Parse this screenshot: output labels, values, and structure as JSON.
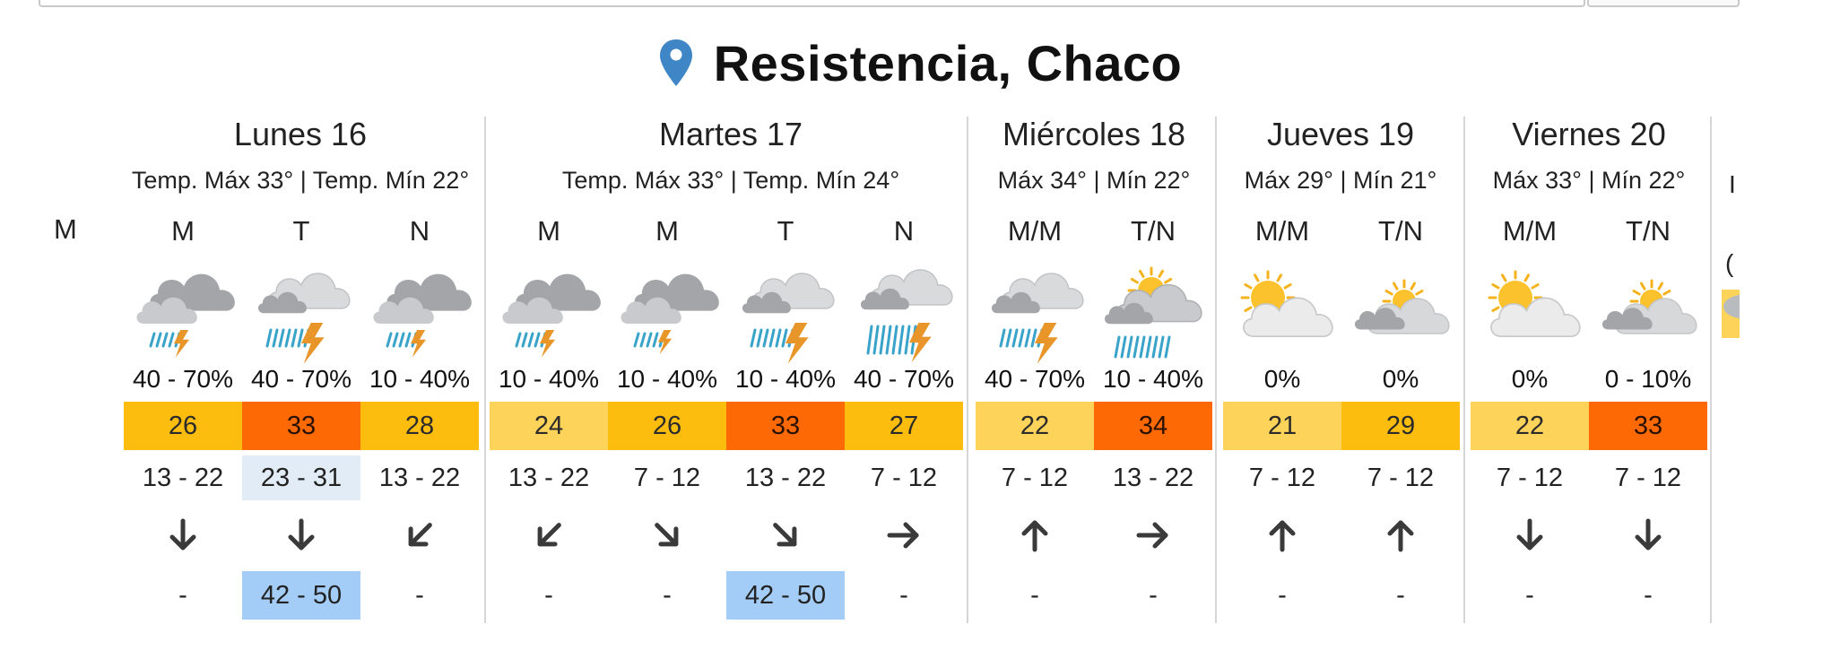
{
  "location": {
    "name": "Resistencia, Chaco",
    "pin_color": "#3f86c7"
  },
  "first_partial_period": "M",
  "temp_colors": {
    "light": "#fdd35a",
    "mid": "#fdbd0f",
    "hot": "#fd6904"
  },
  "days": [
    {
      "name": "Lunes 16",
      "temps": "Temp. Máx 33° | Temp. Mín 22°",
      "periods": [
        {
          "label": "M",
          "icon": "rain-thunder-cloudy-icon",
          "rain": "40 - 70%",
          "temp": "26",
          "temp_level": "mid",
          "wind": "13 - 22",
          "wind_hl": false,
          "dir": "down",
          "gust": "-",
          "gust_hl": false
        },
        {
          "label": "T",
          "icon": "heavy-rain-thunder-icon",
          "rain": "40 - 70%",
          "temp": "33",
          "temp_level": "hot",
          "wind": "23 - 31",
          "wind_hl": true,
          "dir": "down",
          "gust": "42 - 50",
          "gust_hl": true
        },
        {
          "label": "N",
          "icon": "rain-thunder-cloudy-icon",
          "rain": "10 - 40%",
          "temp": "28",
          "temp_level": "mid",
          "wind": "13 - 22",
          "wind_hl": false,
          "dir": "down-left",
          "gust": "-",
          "gust_hl": false
        }
      ]
    },
    {
      "name": "Martes 17",
      "temps": "Temp. Máx 33° | Temp. Mín 24°",
      "periods": [
        {
          "label": "M",
          "icon": "rain-thunder-cloudy-icon",
          "rain": "10 - 40%",
          "temp": "24",
          "temp_level": "light",
          "wind": "13 - 22",
          "wind_hl": false,
          "dir": "down-left",
          "gust": "-",
          "gust_hl": false
        },
        {
          "label": "M",
          "icon": "rain-cloudy-icon",
          "rain": "10 - 40%",
          "temp": "26",
          "temp_level": "mid",
          "wind": "7 - 12",
          "wind_hl": false,
          "dir": "down-right",
          "gust": "-",
          "gust_hl": false
        },
        {
          "label": "T",
          "icon": "heavy-rain-thunder-icon",
          "rain": "10 - 40%",
          "temp": "33",
          "temp_level": "hot",
          "wind": "13 - 22",
          "wind_hl": false,
          "dir": "down-right",
          "gust": "42 - 50",
          "gust_hl": true
        },
        {
          "label": "N",
          "icon": "storm-rain-thunder-icon",
          "rain": "40 - 70%",
          "temp": "27",
          "temp_level": "mid",
          "wind": "7 - 12",
          "wind_hl": false,
          "dir": "right",
          "gust": "-",
          "gust_hl": false
        }
      ]
    },
    {
      "name": "Miércoles 18",
      "temps": "Máx 34° | Mín 22°",
      "periods": [
        {
          "label": "M/M",
          "icon": "heavy-rain-thunder-icon",
          "rain": "40 - 70%",
          "temp": "22",
          "temp_level": "light",
          "wind": "7 - 12",
          "wind_hl": false,
          "dir": "up",
          "gust": "-",
          "gust_hl": false
        },
        {
          "label": "T/N",
          "icon": "sun-rain-cloud-icon",
          "rain": "10 - 40%",
          "temp": "34",
          "temp_level": "hot",
          "wind": "13 - 22",
          "wind_hl": false,
          "dir": "right",
          "gust": "-",
          "gust_hl": false
        }
      ]
    },
    {
      "name": "Jueves 19",
      "temps": "Máx 29° | Mín 21°",
      "periods": [
        {
          "label": "M/M",
          "icon": "partly-sunny-icon",
          "rain": "0%",
          "temp": "21",
          "temp_level": "light",
          "wind": "7 - 12",
          "wind_hl": false,
          "dir": "up",
          "gust": "-",
          "gust_hl": false
        },
        {
          "label": "T/N",
          "icon": "partly-cloudy-icon",
          "rain": "0%",
          "temp": "29",
          "temp_level": "mid",
          "wind": "7 - 12",
          "wind_hl": false,
          "dir": "up",
          "gust": "-",
          "gust_hl": false
        }
      ]
    },
    {
      "name": "Viernes 20",
      "temps": "Máx 33° | Mín 22°",
      "periods": [
        {
          "label": "M/M",
          "icon": "partly-sunny-icon",
          "rain": "0%",
          "temp": "22",
          "temp_level": "light",
          "wind": "7 - 12",
          "wind_hl": false,
          "dir": "down",
          "gust": "-",
          "gust_hl": false
        },
        {
          "label": "T/N",
          "icon": "partly-cloudy-icon",
          "rain": "0 - 10%",
          "temp": "33",
          "temp_level": "hot",
          "wind": "7 - 12",
          "wind_hl": false,
          "dir": "down",
          "gust": "-",
          "gust_hl": false
        }
      ]
    }
  ]
}
